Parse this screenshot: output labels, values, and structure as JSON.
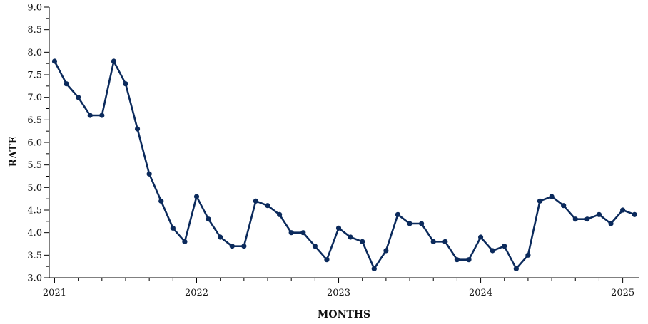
{
  "chart_data": {
    "type": "line",
    "title": "",
    "xlabel": "MONTHS",
    "ylabel": "RATE",
    "ylim": [
      3.0,
      9.0
    ],
    "yticks": [
      "3.0",
      "3.5",
      "4.0",
      "4.5",
      "5.0",
      "5.5",
      "6.0",
      "6.5",
      "7.0",
      "7.5",
      "8.0",
      "8.5",
      "9.0"
    ],
    "xlim": [
      "2021-01",
      "2025-02"
    ],
    "xticks": [
      {
        "label": "2021",
        "date": "2021-01"
      },
      {
        "label": "2022",
        "date": "2022-01"
      },
      {
        "label": "2023",
        "date": "2023-01"
      },
      {
        "label": "2024",
        "date": "2024-01"
      },
      {
        "label": "2025",
        "date": "2025-01"
      }
    ],
    "grid": false,
    "line_color": "#0b2a5c",
    "x": [
      "2021-01",
      "2021-02",
      "2021-03",
      "2021-04",
      "2021-05",
      "2021-06",
      "2021-07",
      "2021-08",
      "2021-09",
      "2021-10",
      "2021-11",
      "2021-12",
      "2022-01",
      "2022-02",
      "2022-03",
      "2022-04",
      "2022-05",
      "2022-06",
      "2022-07",
      "2022-08",
      "2022-09",
      "2022-10",
      "2022-11",
      "2022-12",
      "2023-01",
      "2023-02",
      "2023-03",
      "2023-04",
      "2023-05",
      "2023-06",
      "2023-07",
      "2023-08",
      "2023-09",
      "2023-10",
      "2023-11",
      "2023-12",
      "2024-01",
      "2024-02",
      "2024-03",
      "2024-04",
      "2024-05",
      "2024-06",
      "2024-07",
      "2024-08",
      "2024-09",
      "2024-10",
      "2024-11",
      "2024-12",
      "2025-01",
      "2025-02"
    ],
    "values": [
      7.8,
      7.3,
      7.0,
      6.6,
      6.6,
      7.8,
      7.3,
      6.3,
      5.3,
      4.7,
      4.1,
      3.8,
      4.8,
      4.3,
      3.9,
      3.7,
      3.7,
      4.7,
      4.6,
      4.4,
      4.0,
      4.0,
      3.7,
      3.4,
      4.1,
      3.9,
      3.8,
      3.2,
      3.6,
      4.4,
      4.2,
      4.2,
      3.8,
      3.8,
      3.4,
      3.4,
      3.9,
      3.6,
      3.7,
      3.2,
      3.5,
      4.7,
      4.8,
      4.6,
      4.3,
      4.3,
      4.4,
      4.2,
      4.5,
      4.4
    ]
  }
}
